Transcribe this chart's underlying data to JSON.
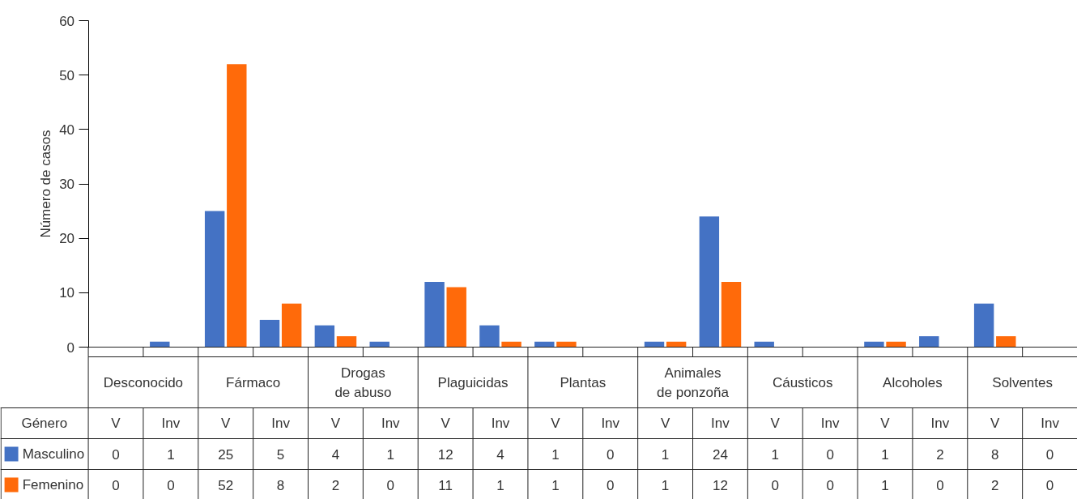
{
  "chart_data": {
    "type": "bar",
    "ylabel": "Número de casos",
    "legend_title": "Género",
    "categories": [
      "V",
      "Inv",
      "V",
      "Inv",
      "V",
      "Inv",
      "V",
      "Inv",
      "V",
      "Inv",
      "V",
      "Inv",
      "V",
      "Inv",
      "V",
      "Inv",
      "V",
      "Inv"
    ],
    "annotations": [
      "Desconocido",
      "Fármaco",
      "Drogas\nde abuso",
      "Plaguicidas",
      "Plantas",
      "Animales\nde ponzoña",
      "Cáusticos",
      "Alcoholes",
      "Solventes"
    ],
    "series": [
      {
        "name": "Masculino",
        "color": "#4472c4",
        "values": [
          0,
          1,
          25,
          5,
          4,
          1,
          12,
          4,
          1,
          0,
          1,
          24,
          1,
          0,
          1,
          2,
          8,
          0
        ]
      },
      {
        "name": "Femenino",
        "color": "#ff6a0a",
        "values": [
          0,
          0,
          52,
          8,
          2,
          0,
          11,
          1,
          1,
          0,
          1,
          12,
          0,
          0,
          1,
          0,
          2,
          0
        ]
      }
    ],
    "ylim": [
      0,
      60
    ],
    "yticks": [
      0,
      10,
      20,
      30,
      40,
      50,
      60
    ],
    "grid": false,
    "legend": "bottom left",
    "data_labels": true
  }
}
